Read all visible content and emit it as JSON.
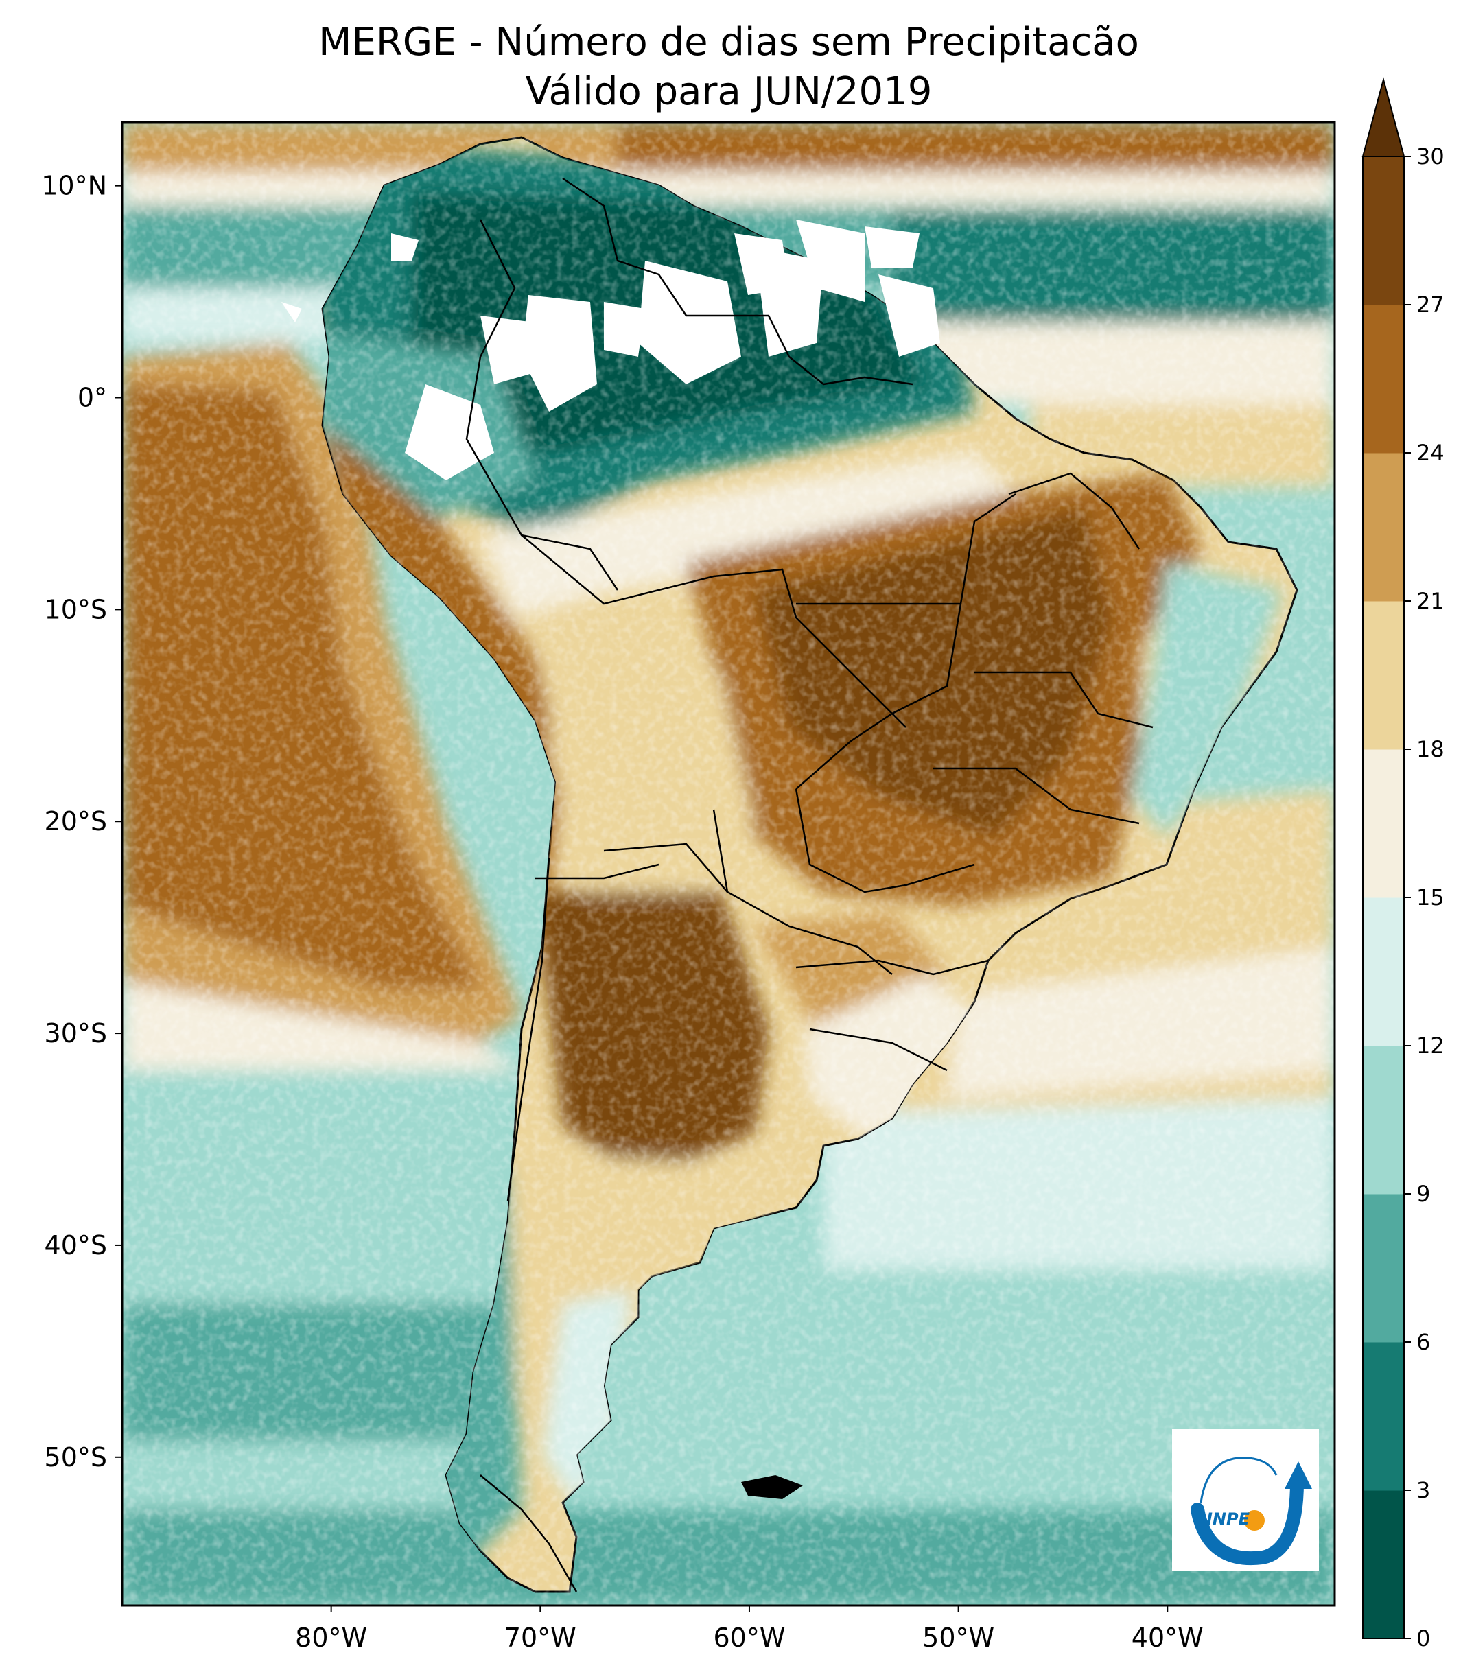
{
  "title": {
    "line1": "MERGE - Número de dias sem Precipitacão",
    "line2": "Válido para JUN/2019"
  },
  "map": {
    "lat_range": [
      -57,
      13
    ],
    "lon_range": [
      -90,
      -32
    ],
    "lat_labels": [
      {
        "lat": 10,
        "text": "10°N"
      },
      {
        "lat": 0,
        "text": "0°"
      },
      {
        "lat": -10,
        "text": "10°S"
      },
      {
        "lat": -20,
        "text": "20°S"
      },
      {
        "lat": -30,
        "text": "30°S"
      },
      {
        "lat": -40,
        "text": "40°S"
      },
      {
        "lat": -50,
        "text": "50°S"
      }
    ],
    "lon_labels": [
      {
        "lon": -80,
        "text": "80°W"
      },
      {
        "lon": -70,
        "text": "70°W"
      },
      {
        "lon": -60,
        "text": "60°W"
      },
      {
        "lon": -50,
        "text": "50°W"
      },
      {
        "lon": -40,
        "text": "40°W"
      }
    ]
  },
  "colorbar": {
    "ticks": [
      "0",
      "3",
      "6",
      "9",
      "12",
      "15",
      "18",
      "21",
      "24",
      "27",
      "30"
    ],
    "colors": [
      "#01554a",
      "#167b72",
      "#52aa9f",
      "#9fd9cf",
      "#d9f0ec",
      "#f5efdf",
      "#ecd59b",
      "#cf9d52",
      "#a6661e",
      "#7a4610"
    ],
    "extend_color": "#5c3208"
  },
  "logo": {
    "text": "INPE",
    "colors": {
      "blue": "#0a6fb5",
      "orange": "#f39c12"
    }
  }
}
